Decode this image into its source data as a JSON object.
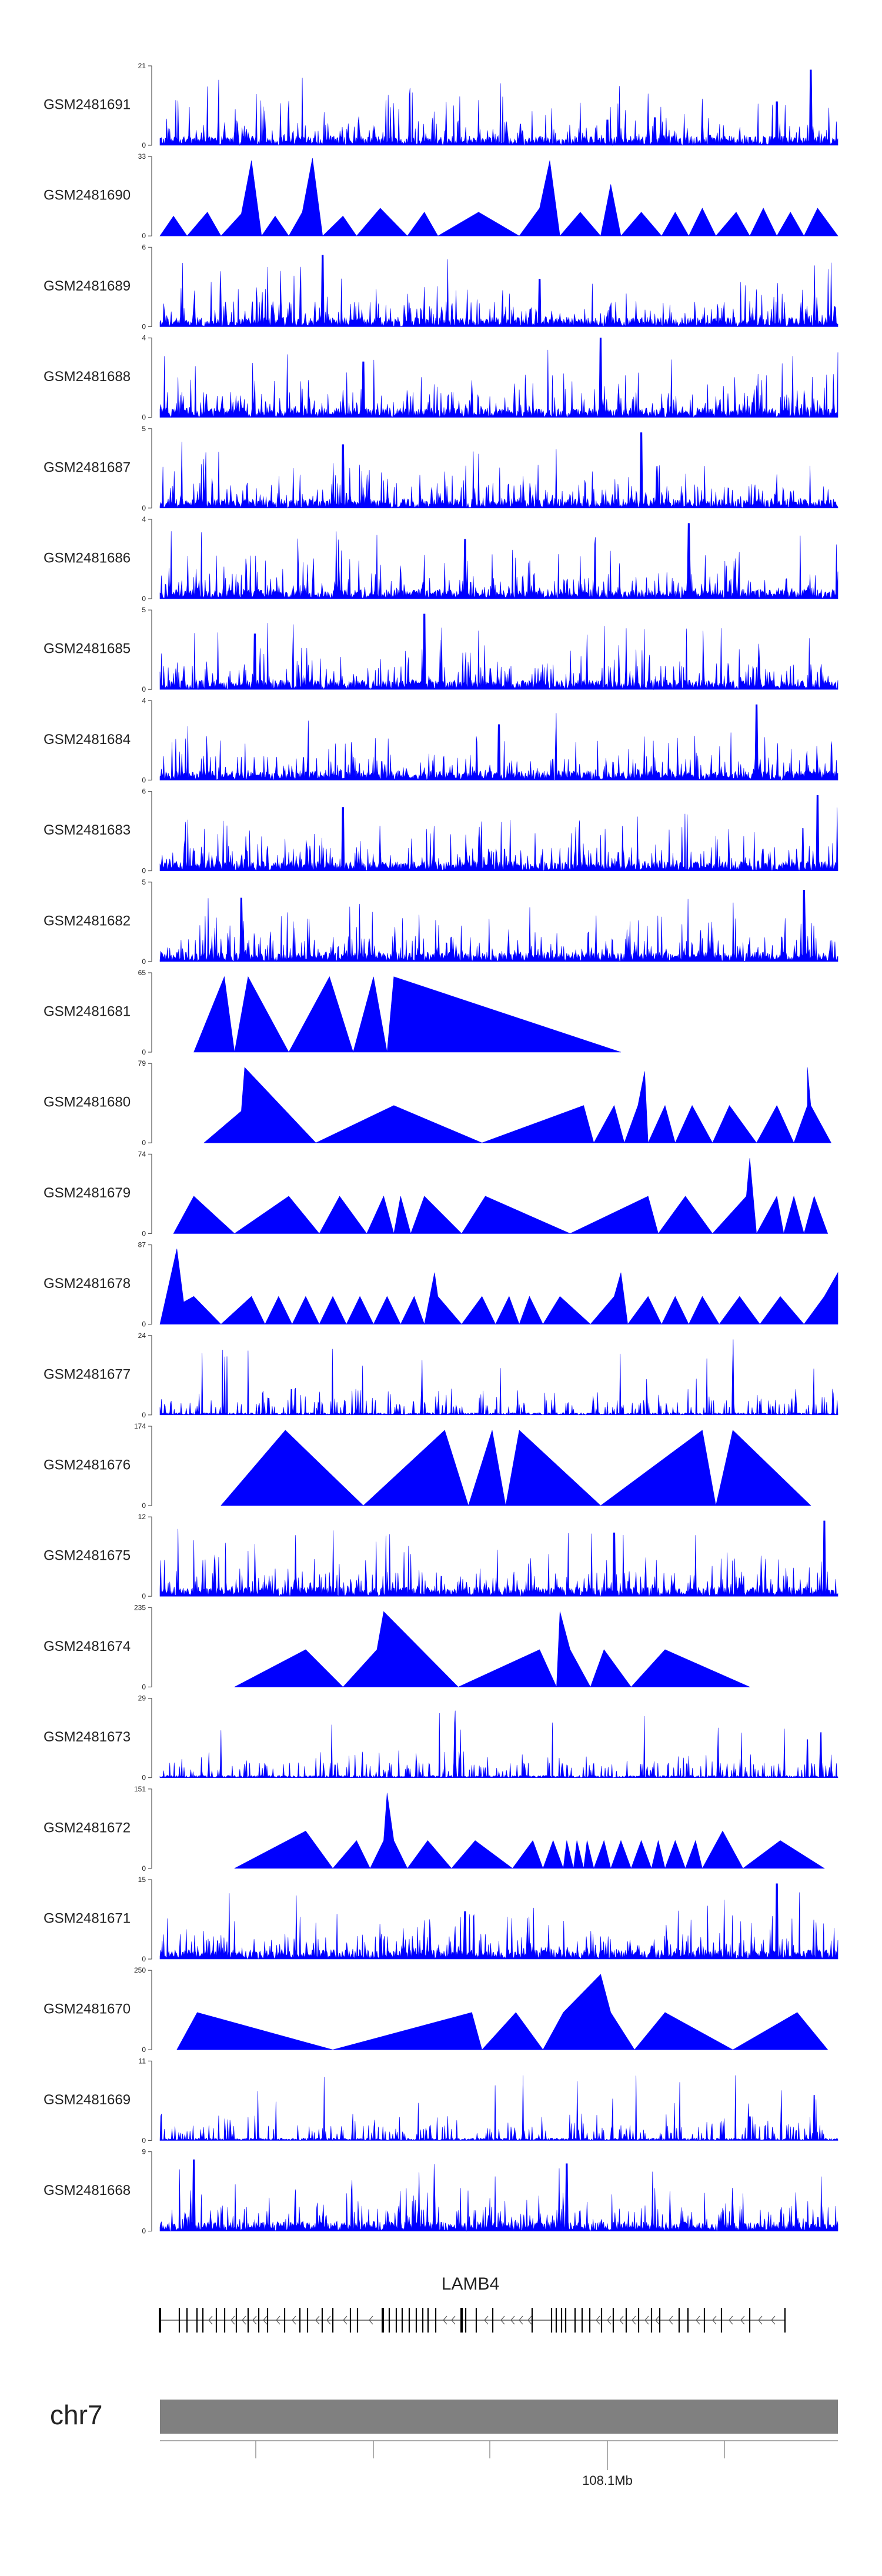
{
  "chart_data": {
    "type": "area",
    "title": "",
    "fill_color": "#0000ff",
    "axis_color": "#555555",
    "tracks": [
      {
        "name": "GSM2481691",
        "ymax": 21,
        "ymin": 0,
        "style": "dense",
        "peaks": [
          [
            0.73,
            0.35
          ],
          [
            0.91,
            0.55
          ],
          [
            0.96,
            0.95
          ],
          [
            0.66,
            0.32
          ]
        ]
      },
      {
        "name": "GSM2481690",
        "ymax": 33,
        "ymin": 0,
        "style": "sparse",
        "points": [
          [
            0.0,
            0
          ],
          [
            0.02,
            0.25
          ],
          [
            0.04,
            0
          ],
          [
            0.07,
            0.3
          ],
          [
            0.09,
            0
          ],
          [
            0.12,
            0.28
          ],
          [
            0.135,
            0.95
          ],
          [
            0.15,
            0
          ],
          [
            0.17,
            0.25
          ],
          [
            0.19,
            0
          ],
          [
            0.21,
            0.3
          ],
          [
            0.225,
            0.98
          ],
          [
            0.24,
            0
          ],
          [
            0.27,
            0.25
          ],
          [
            0.29,
            0
          ],
          [
            0.325,
            0.35
          ],
          [
            0.365,
            0
          ],
          [
            0.39,
            0.3
          ],
          [
            0.41,
            0
          ],
          [
            0.47,
            0.3
          ],
          [
            0.53,
            0
          ],
          [
            0.56,
            0.35
          ],
          [
            0.575,
            0.95
          ],
          [
            0.59,
            0
          ],
          [
            0.62,
            0.3
          ],
          [
            0.65,
            0
          ],
          [
            0.665,
            0.65
          ],
          [
            0.68,
            0
          ],
          [
            0.71,
            0.3
          ],
          [
            0.74,
            0
          ],
          [
            0.76,
            0.3
          ],
          [
            0.78,
            0
          ],
          [
            0.8,
            0.35
          ],
          [
            0.82,
            0
          ],
          [
            0.85,
            0.3
          ],
          [
            0.87,
            0
          ],
          [
            0.89,
            0.35
          ],
          [
            0.91,
            0
          ],
          [
            0.93,
            0.3
          ],
          [
            0.95,
            0
          ],
          [
            0.97,
            0.35
          ],
          [
            1.0,
            0
          ]
        ]
      },
      {
        "name": "GSM2481689",
        "ymax": 6,
        "ymin": 0,
        "style": "dense",
        "peaks": [
          [
            0.24,
            0.9
          ],
          [
            0.56,
            0.6
          ]
        ]
      },
      {
        "name": "GSM2481688",
        "ymax": 4,
        "ymin": 0,
        "style": "dense",
        "peaks": [
          [
            0.65,
            1.0
          ],
          [
            0.3,
            0.7
          ]
        ]
      },
      {
        "name": "GSM2481687",
        "ymax": 5,
        "ymin": 0,
        "style": "dense",
        "peaks": [
          [
            0.71,
            0.95
          ],
          [
            0.27,
            0.8
          ]
        ]
      },
      {
        "name": "GSM2481686",
        "ymax": 4,
        "ymin": 0,
        "style": "dense",
        "peaks": [
          [
            0.78,
            0.95
          ],
          [
            0.45,
            0.75
          ]
        ]
      },
      {
        "name": "GSM2481685",
        "ymax": 5,
        "ymin": 0,
        "style": "dense",
        "peaks": [
          [
            0.39,
            0.95
          ],
          [
            0.14,
            0.7
          ]
        ]
      },
      {
        "name": "GSM2481684",
        "ymax": 4,
        "ymin": 0,
        "style": "dense",
        "peaks": [
          [
            0.88,
            0.95
          ],
          [
            0.5,
            0.7
          ]
        ]
      },
      {
        "name": "GSM2481683",
        "ymax": 6,
        "ymin": 0,
        "style": "dense",
        "peaks": [
          [
            0.27,
            0.8
          ],
          [
            0.97,
            0.95
          ]
        ]
      },
      {
        "name": "GSM2481682",
        "ymax": 5,
        "ymin": 0,
        "style": "dense",
        "peaks": [
          [
            0.95,
            0.9
          ],
          [
            0.12,
            0.8
          ]
        ]
      },
      {
        "name": "GSM2481681",
        "ymax": 65,
        "ymin": 0,
        "style": "sparse",
        "points": [
          [
            0.05,
            0
          ],
          [
            0.095,
            0.95
          ],
          [
            0.11,
            0
          ],
          [
            0.13,
            0.95
          ],
          [
            0.19,
            0
          ],
          [
            0.25,
            0.95
          ],
          [
            0.285,
            0
          ],
          [
            0.315,
            0.95
          ],
          [
            0.335,
            0
          ],
          [
            0.345,
            0.95
          ],
          [
            0.68,
            0
          ]
        ]
      },
      {
        "name": "GSM2481680",
        "ymax": 79,
        "ymin": 0,
        "style": "sparse",
        "points": [
          [
            0.065,
            0
          ],
          [
            0.12,
            0.4
          ],
          [
            0.125,
            0.95
          ],
          [
            0.23,
            0
          ],
          [
            0.345,
            0.47
          ],
          [
            0.475,
            0
          ],
          [
            0.625,
            0.47
          ],
          [
            0.64,
            0
          ],
          [
            0.67,
            0.47
          ],
          [
            0.685,
            0
          ],
          [
            0.705,
            0.47
          ],
          [
            0.715,
            0.9
          ],
          [
            0.72,
            0
          ],
          [
            0.745,
            0.47
          ],
          [
            0.76,
            0
          ],
          [
            0.785,
            0.47
          ],
          [
            0.815,
            0
          ],
          [
            0.84,
            0.47
          ],
          [
            0.88,
            0
          ],
          [
            0.91,
            0.47
          ],
          [
            0.935,
            0
          ],
          [
            0.955,
            0.47
          ],
          [
            0.955,
            0.95
          ],
          [
            0.96,
            0.47
          ],
          [
            0.99,
            0
          ]
        ]
      },
      {
        "name": "GSM2481679",
        "ymax": 74,
        "ymin": 0,
        "style": "sparse",
        "points": [
          [
            0.02,
            0
          ],
          [
            0.05,
            0.47
          ],
          [
            0.11,
            0
          ],
          [
            0.19,
            0.47
          ],
          [
            0.235,
            0
          ],
          [
            0.265,
            0.47
          ],
          [
            0.305,
            0
          ],
          [
            0.33,
            0.47
          ],
          [
            0.345,
            0
          ],
          [
            0.355,
            0.47
          ],
          [
            0.37,
            0
          ],
          [
            0.39,
            0.47
          ],
          [
            0.445,
            0
          ],
          [
            0.48,
            0.47
          ],
          [
            0.605,
            0
          ],
          [
            0.72,
            0.47
          ],
          [
            0.735,
            0
          ],
          [
            0.775,
            0.47
          ],
          [
            0.815,
            0
          ],
          [
            0.865,
            0.47
          ],
          [
            0.87,
            0.95
          ],
          [
            0.88,
            0
          ],
          [
            0.91,
            0.47
          ],
          [
            0.92,
            0
          ],
          [
            0.935,
            0.47
          ],
          [
            0.95,
            0
          ],
          [
            0.965,
            0.47
          ],
          [
            0.985,
            0
          ]
        ]
      },
      {
        "name": "GSM2481678",
        "ymax": 87,
        "ymin": 0,
        "style": "sparse",
        "points": [
          [
            0.0,
            0
          ],
          [
            0.025,
            0.95
          ],
          [
            0.035,
            0.28
          ],
          [
            0.05,
            0.35
          ],
          [
            0.09,
            0
          ],
          [
            0.135,
            0.35
          ],
          [
            0.155,
            0
          ],
          [
            0.175,
            0.35
          ],
          [
            0.195,
            0
          ],
          [
            0.215,
            0.35
          ],
          [
            0.235,
            0
          ],
          [
            0.255,
            0.35
          ],
          [
            0.275,
            0
          ],
          [
            0.295,
            0.35
          ],
          [
            0.315,
            0
          ],
          [
            0.335,
            0.35
          ],
          [
            0.355,
            0
          ],
          [
            0.375,
            0.35
          ],
          [
            0.39,
            0
          ],
          [
            0.405,
            0.65
          ],
          [
            0.41,
            0.35
          ],
          [
            0.445,
            0
          ],
          [
            0.475,
            0.35
          ],
          [
            0.495,
            0
          ],
          [
            0.515,
            0.35
          ],
          [
            0.53,
            0
          ],
          [
            0.545,
            0.35
          ],
          [
            0.565,
            0
          ],
          [
            0.59,
            0.35
          ],
          [
            0.635,
            0
          ],
          [
            0.67,
            0.35
          ],
          [
            0.68,
            0.65
          ],
          [
            0.69,
            0
          ],
          [
            0.72,
            0.35
          ],
          [
            0.74,
            0
          ],
          [
            0.76,
            0.35
          ],
          [
            0.78,
            0
          ],
          [
            0.8,
            0.35
          ],
          [
            0.825,
            0
          ],
          [
            0.855,
            0.35
          ],
          [
            0.885,
            0
          ],
          [
            0.915,
            0.35
          ],
          [
            0.95,
            0
          ],
          [
            0.98,
            0.35
          ],
          [
            1.0,
            0.65
          ]
        ]
      },
      {
        "name": "GSM2481677",
        "ymax": 24,
        "ymin": 0,
        "style": "dense",
        "low": true,
        "peaks": [
          [
            0.845,
            0.95
          ],
          [
            0.16,
            0.35
          ]
        ]
      },
      {
        "name": "GSM2481676",
        "ymax": 174,
        "ymin": 0,
        "style": "sparse",
        "points": [
          [
            0.09,
            0
          ],
          [
            0.185,
            0.95
          ],
          [
            0.3,
            0
          ],
          [
            0.42,
            0.95
          ],
          [
            0.455,
            0
          ],
          [
            0.49,
            0.95
          ],
          [
            0.51,
            0
          ],
          [
            0.53,
            0.95
          ],
          [
            0.65,
            0
          ],
          [
            0.8,
            0.95
          ],
          [
            0.82,
            0
          ],
          [
            0.845,
            0.95
          ],
          [
            0.96,
            0
          ]
        ]
      },
      {
        "name": "GSM2481675",
        "ymax": 12,
        "ymin": 0,
        "style": "dense",
        "peaks": [
          [
            0.98,
            0.95
          ],
          [
            0.67,
            0.8
          ]
        ]
      },
      {
        "name": "GSM2481674",
        "ymax": 235,
        "ymin": 0,
        "style": "sparse",
        "points": [
          [
            0.11,
            0
          ],
          [
            0.215,
            0.47
          ],
          [
            0.27,
            0
          ],
          [
            0.32,
            0.47
          ],
          [
            0.33,
            0.95
          ],
          [
            0.44,
            0
          ],
          [
            0.56,
            0.47
          ],
          [
            0.585,
            0
          ],
          [
            0.59,
            0.95
          ],
          [
            0.605,
            0.47
          ],
          [
            0.635,
            0
          ],
          [
            0.655,
            0.47
          ],
          [
            0.695,
            0
          ],
          [
            0.745,
            0.47
          ],
          [
            0.87,
            0
          ]
        ]
      },
      {
        "name": "GSM2481673",
        "ymax": 29,
        "ymin": 0,
        "style": "dense",
        "low": true,
        "peaks": [
          [
            0.975,
            0.95
          ],
          [
            0.955,
            0.8
          ]
        ]
      },
      {
        "name": "GSM2481672",
        "ymax": 151,
        "ymin": 0,
        "style": "sparse",
        "points": [
          [
            0.11,
            0
          ],
          [
            0.215,
            0.47
          ],
          [
            0.255,
            0
          ],
          [
            0.29,
            0.35
          ],
          [
            0.31,
            0
          ],
          [
            0.33,
            0.35
          ],
          [
            0.335,
            0.95
          ],
          [
            0.345,
            0.35
          ],
          [
            0.365,
            0
          ],
          [
            0.395,
            0.35
          ],
          [
            0.43,
            0
          ],
          [
            0.465,
            0.35
          ],
          [
            0.52,
            0
          ],
          [
            0.55,
            0.35
          ],
          [
            0.565,
            0
          ],
          [
            0.58,
            0.35
          ],
          [
            0.595,
            0
          ],
          [
            0.6,
            0.35
          ],
          [
            0.61,
            0
          ],
          [
            0.615,
            0.35
          ],
          [
            0.625,
            0
          ],
          [
            0.63,
            0.35
          ],
          [
            0.64,
            0
          ],
          [
            0.655,
            0.35
          ],
          [
            0.665,
            0
          ],
          [
            0.68,
            0.35
          ],
          [
            0.695,
            0
          ],
          [
            0.71,
            0.35
          ],
          [
            0.725,
            0
          ],
          [
            0.735,
            0.35
          ],
          [
            0.745,
            0
          ],
          [
            0.76,
            0.35
          ],
          [
            0.775,
            0
          ],
          [
            0.79,
            0.35
          ],
          [
            0.8,
            0
          ],
          [
            0.83,
            0.47
          ],
          [
            0.86,
            0
          ],
          [
            0.915,
            0.35
          ],
          [
            0.98,
            0
          ]
        ]
      },
      {
        "name": "GSM2481671",
        "ymax": 15,
        "ymin": 0,
        "style": "dense",
        "peaks": [
          [
            0.91,
            0.95
          ],
          [
            0.45,
            0.6
          ]
        ]
      },
      {
        "name": "GSM2481670",
        "ymax": 250,
        "ymin": 0,
        "style": "sparse",
        "points": [
          [
            0.025,
            0
          ],
          [
            0.055,
            0.47
          ],
          [
            0.255,
            0
          ],
          [
            0.46,
            0.47
          ],
          [
            0.475,
            0
          ],
          [
            0.525,
            0.47
          ],
          [
            0.565,
            0
          ],
          [
            0.595,
            0.47
          ],
          [
            0.65,
            0.95
          ],
          [
            0.665,
            0.47
          ],
          [
            0.7,
            0
          ],
          [
            0.745,
            0.47
          ],
          [
            0.845,
            0
          ],
          [
            0.94,
            0.47
          ],
          [
            0.985,
            0
          ]
        ]
      },
      {
        "name": "GSM2481669",
        "ymax": 11,
        "ymin": 0,
        "style": "dense",
        "low": true,
        "peaks": [
          [
            0.965,
            0.95
          ],
          [
            0.87,
            0.5
          ]
        ]
      },
      {
        "name": "GSM2481668",
        "ymax": 9,
        "ymin": 0,
        "style": "dense",
        "peaks": [
          [
            0.05,
            0.9
          ],
          [
            0.6,
            0.85
          ]
        ]
      }
    ],
    "gene": {
      "name": "LAMB4",
      "strand": "-"
    },
    "chromosome": {
      "name": "chr7",
      "tick_label": "108.1Mb",
      "ticks": 6,
      "labeled_tick_index": 3
    }
  }
}
